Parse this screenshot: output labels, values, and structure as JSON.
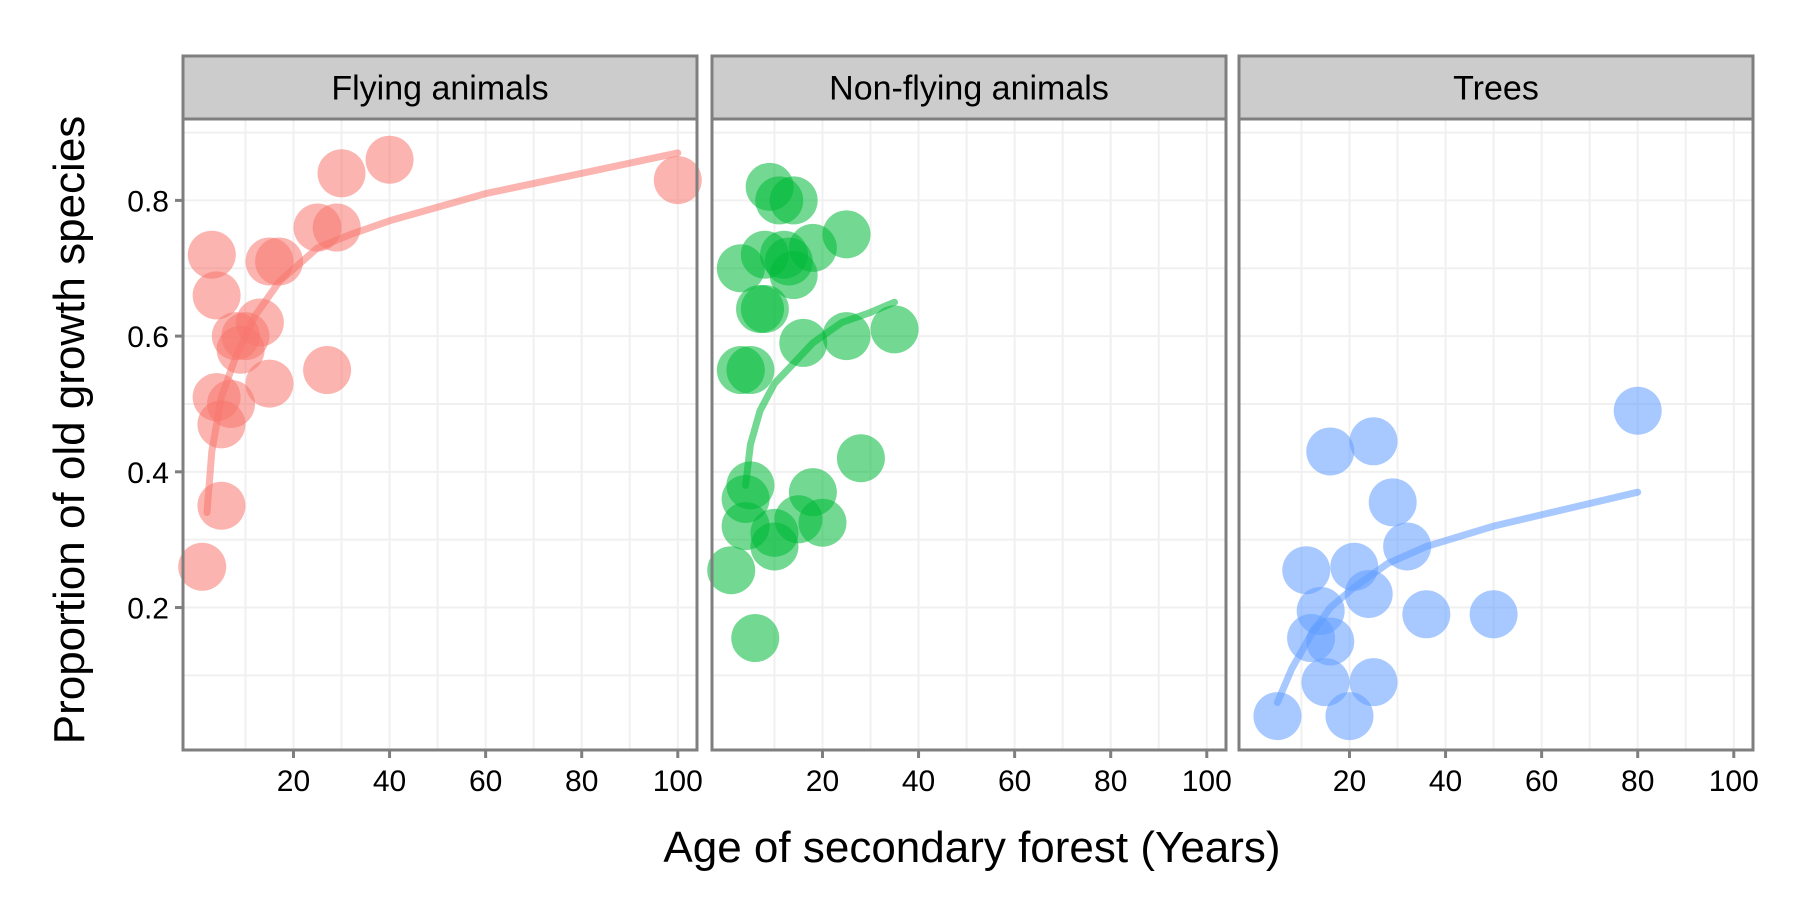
{
  "chart_data": {
    "type": "scatter",
    "ylabel": "Proportion of old growth species",
    "xlabel": "Age of secondary forest (Years)",
    "xlim": [
      -3,
      104
    ],
    "ylim": [
      -0.01,
      0.92
    ],
    "x_ticks": [
      20,
      40,
      60,
      80,
      100
    ],
    "y_ticks": [
      0.2,
      0.4,
      0.6,
      0.8
    ],
    "x_tick_labels": [
      "20",
      "40",
      "60",
      "80",
      "100"
    ],
    "y_tick_labels": [
      "0.2",
      "0.4",
      "0.6",
      "0.8"
    ],
    "grid": true,
    "panels": [
      {
        "name": "Flying animals",
        "color": "#F8766D",
        "points": [
          {
            "x": 1,
            "y": 0.26
          },
          {
            "x": 3,
            "y": 0.72
          },
          {
            "x": 4,
            "y": 0.66
          },
          {
            "x": 4,
            "y": 0.51
          },
          {
            "x": 5,
            "y": 0.47
          },
          {
            "x": 5,
            "y": 0.35
          },
          {
            "x": 7,
            "y": 0.5
          },
          {
            "x": 8,
            "y": 0.6
          },
          {
            "x": 9,
            "y": 0.58
          },
          {
            "x": 10,
            "y": 0.6
          },
          {
            "x": 13,
            "y": 0.62
          },
          {
            "x": 15,
            "y": 0.71
          },
          {
            "x": 15,
            "y": 0.53
          },
          {
            "x": 17,
            "y": 0.71
          },
          {
            "x": 25,
            "y": 0.76
          },
          {
            "x": 27,
            "y": 0.55
          },
          {
            "x": 29,
            "y": 0.76
          },
          {
            "x": 30,
            "y": 0.84
          },
          {
            "x": 40,
            "y": 0.86
          },
          {
            "x": 100,
            "y": 0.83
          }
        ],
        "fit": [
          {
            "x": 2,
            "y": 0.34
          },
          {
            "x": 3,
            "y": 0.43
          },
          {
            "x": 5,
            "y": 0.51
          },
          {
            "x": 8,
            "y": 0.57
          },
          {
            "x": 12,
            "y": 0.63
          },
          {
            "x": 17,
            "y": 0.68
          },
          {
            "x": 25,
            "y": 0.73
          },
          {
            "x": 32,
            "y": 0.75
          },
          {
            "x": 40,
            "y": 0.77
          },
          {
            "x": 60,
            "y": 0.81
          },
          {
            "x": 80,
            "y": 0.84
          },
          {
            "x": 100,
            "y": 0.87
          }
        ]
      },
      {
        "name": "Non-flying animals",
        "color": "#00BA38",
        "points": [
          {
            "x": 1,
            "y": 0.255
          },
          {
            "x": 3,
            "y": 0.7
          },
          {
            "x": 3,
            "y": 0.55
          },
          {
            "x": 4,
            "y": 0.36
          },
          {
            "x": 4,
            "y": 0.32
          },
          {
            "x": 5,
            "y": 0.38
          },
          {
            "x": 5,
            "y": 0.55
          },
          {
            "x": 6,
            "y": 0.155
          },
          {
            "x": 7,
            "y": 0.64
          },
          {
            "x": 8,
            "y": 0.72
          },
          {
            "x": 8,
            "y": 0.64
          },
          {
            "x": 9,
            "y": 0.82
          },
          {
            "x": 10,
            "y": 0.29
          },
          {
            "x": 10,
            "y": 0.31
          },
          {
            "x": 11,
            "y": 0.8
          },
          {
            "x": 12,
            "y": 0.72
          },
          {
            "x": 13,
            "y": 0.71
          },
          {
            "x": 14,
            "y": 0.69
          },
          {
            "x": 14,
            "y": 0.8
          },
          {
            "x": 15,
            "y": 0.33
          },
          {
            "x": 16,
            "y": 0.59
          },
          {
            "x": 18,
            "y": 0.73
          },
          {
            "x": 18,
            "y": 0.37
          },
          {
            "x": 20,
            "y": 0.325
          },
          {
            "x": 25,
            "y": 0.75
          },
          {
            "x": 25,
            "y": 0.6
          },
          {
            "x": 28,
            "y": 0.42
          },
          {
            "x": 35,
            "y": 0.61
          }
        ],
        "fit": [
          {
            "x": 4,
            "y": 0.38
          },
          {
            "x": 5,
            "y": 0.44
          },
          {
            "x": 7,
            "y": 0.49
          },
          {
            "x": 10,
            "y": 0.53
          },
          {
            "x": 14,
            "y": 0.56
          },
          {
            "x": 18,
            "y": 0.59
          },
          {
            "x": 24,
            "y": 0.62
          },
          {
            "x": 30,
            "y": 0.635
          },
          {
            "x": 35,
            "y": 0.65
          }
        ]
      },
      {
        "name": "Trees",
        "color": "#619CFF",
        "points": [
          {
            "x": 5,
            "y": 0.04
          },
          {
            "x": 11,
            "y": 0.255
          },
          {
            "x": 12,
            "y": 0.155
          },
          {
            "x": 14,
            "y": 0.195
          },
          {
            "x": 15,
            "y": 0.09
          },
          {
            "x": 16,
            "y": 0.15
          },
          {
            "x": 16,
            "y": 0.43
          },
          {
            "x": 20,
            "y": 0.04
          },
          {
            "x": 21,
            "y": 0.26
          },
          {
            "x": 24,
            "y": 0.22
          },
          {
            "x": 25,
            "y": 0.445
          },
          {
            "x": 25,
            "y": 0.09
          },
          {
            "x": 29,
            "y": 0.355
          },
          {
            "x": 32,
            "y": 0.29
          },
          {
            "x": 36,
            "y": 0.19
          },
          {
            "x": 50,
            "y": 0.19
          },
          {
            "x": 80,
            "y": 0.49
          }
        ],
        "fit": [
          {
            "x": 5,
            "y": 0.06
          },
          {
            "x": 8,
            "y": 0.11
          },
          {
            "x": 12,
            "y": 0.16
          },
          {
            "x": 16,
            "y": 0.2
          },
          {
            "x": 21,
            "y": 0.23
          },
          {
            "x": 28,
            "y": 0.265
          },
          {
            "x": 36,
            "y": 0.29
          },
          {
            "x": 50,
            "y": 0.32
          },
          {
            "x": 65,
            "y": 0.345
          },
          {
            "x": 80,
            "y": 0.37
          }
        ]
      }
    ]
  }
}
